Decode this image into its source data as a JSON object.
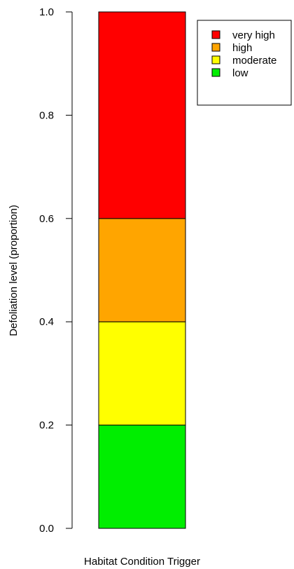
{
  "chart_data": {
    "type": "bar",
    "stacked": true,
    "categories": [
      "Habitat Condition Trigger"
    ],
    "xlabel": "Habitat Condition Trigger",
    "ylabel": "Defoliation level (proportion)",
    "ylim": [
      0,
      1
    ],
    "yticks": [
      "0.0",
      "0.2",
      "0.4",
      "0.6",
      "0.8",
      "1.0"
    ],
    "series": [
      {
        "name": "low",
        "values": [
          0.2
        ],
        "color": "#00ee00"
      },
      {
        "name": "moderate",
        "values": [
          0.2
        ],
        "color": "#ffff00"
      },
      {
        "name": "high",
        "values": [
          0.2
        ],
        "color": "#ffa500"
      },
      {
        "name": "very high",
        "values": [
          0.4
        ],
        "color": "#ff0000"
      }
    ],
    "legend": {
      "placement": "top-right",
      "entries": [
        "very high",
        "high",
        "moderate",
        "low"
      ]
    },
    "grid": false
  }
}
